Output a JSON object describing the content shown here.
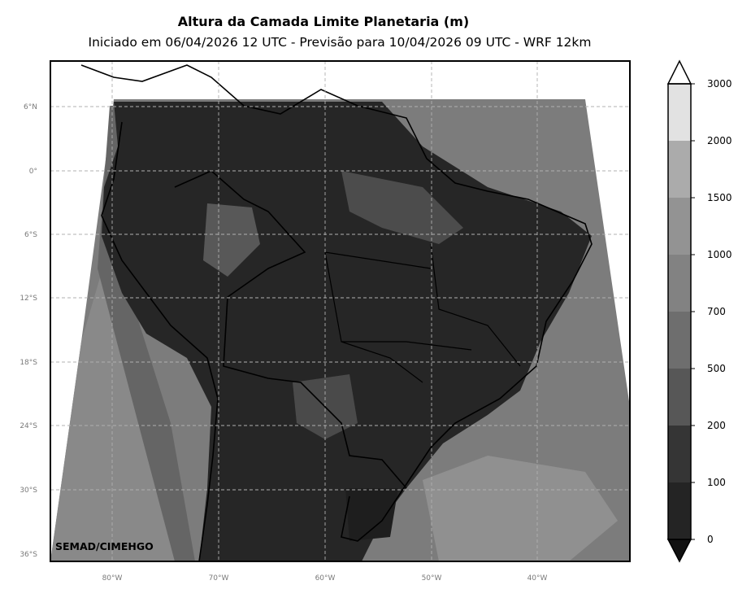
{
  "header": {
    "title": "Altura da Camada Limite Planetaria (m)",
    "subtitle": "Iniciado em 06/04/2026 12 UTC - Previsão para 10/04/2026 09 UTC - WRF 12km"
  },
  "map": {
    "lat_labels": [
      "6°N",
      "0°",
      "6°S",
      "12°S",
      "18°S",
      "24°S",
      "30°S",
      "36°S"
    ],
    "lon_labels": [
      "80°W",
      "70°W",
      "60°W",
      "50°W",
      "40°W"
    ],
    "credit": "SEMAD/CIMEHGO"
  },
  "colorbar": {
    "levels": [
      "0",
      "100",
      "200",
      "500",
      "700",
      "1000",
      "1500",
      "2000",
      "3000"
    ],
    "colors": [
      "#1a1a1a",
      "#242424",
      "#353535",
      "#575757",
      "#6e6e6e",
      "#828282",
      "#939393",
      "#ababab",
      "#e2e2e2"
    ],
    "under_color": "#111111",
    "over_color": "#ffffff"
  }
}
